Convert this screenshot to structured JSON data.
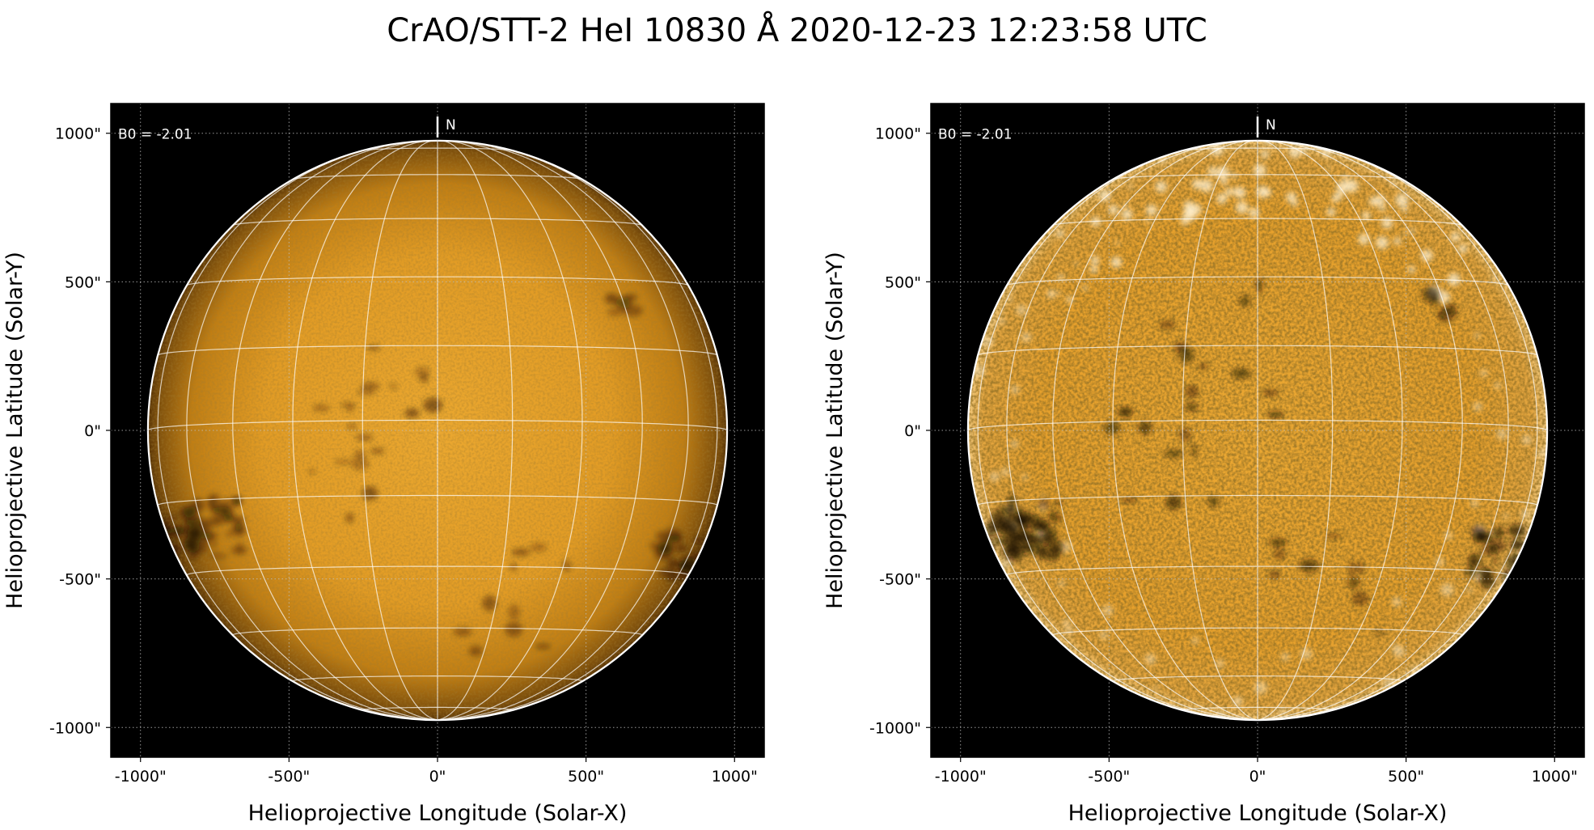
{
  "title": "CrAO/STT-2 HeI 10830 Å 2020-12-23 12:23:58 UTC",
  "colors": {
    "background": "#000000",
    "disk_center": "#e9a32a",
    "disk_limb": "#5a3608",
    "grid": "#ffffff",
    "axis_grid": "#bfbfbf"
  },
  "panels": [
    {
      "id": "left",
      "b0_label": "B0 = -2.01",
      "north_label": "N",
      "xlabel": "Helioprojective Longitude (Solar-X)",
      "ylabel": "Helioprojective Latitude (Solar-Y)",
      "style": "limb-darkened"
    },
    {
      "id": "right",
      "b0_label": "B0 = -2.01",
      "north_label": "N",
      "xlabel": "Helioprojective Longitude (Solar-X)",
      "ylabel": "Helioprojective Latitude (Solar-Y)",
      "style": "contrast-enhanced"
    }
  ],
  "axes": {
    "xlim": [
      -1100,
      1100
    ],
    "ylim": [
      -1100,
      1100
    ],
    "xticks": [
      -1000,
      -500,
      0,
      500,
      1000
    ],
    "yticks": [
      -1000,
      -500,
      0,
      500,
      1000
    ],
    "xtick_labels": [
      "-1000\"",
      "-500\"",
      "0\"",
      "500\"",
      "1000\""
    ],
    "ytick_labels": [
      "-1000\"",
      "-500\"",
      "0\"",
      "500\"",
      "1000\""
    ],
    "grid": "dotted"
  },
  "solar_disk": {
    "radius_arcsec": 975,
    "b0_deg": -2.01,
    "meridian_step_deg": 15,
    "parallel_step_deg": 15
  }
}
